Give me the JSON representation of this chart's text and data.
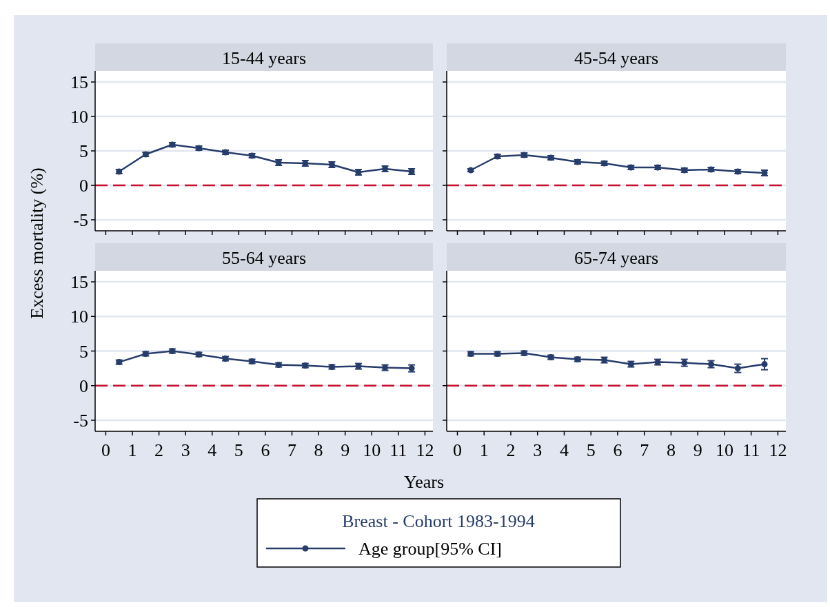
{
  "chart_data": [
    {
      "type": "line",
      "title": "15-44 years",
      "ylabel": "Excess mortality (%)",
      "legend_title": "Breast - Cohort 1983-1994",
      "legend": "bottom",
      "marker": "circle",
      "grid": "y",
      "tick_labels": "y",
      "xlim": [
        -0.4,
        12.3
      ],
      "ylim": [
        -6.6,
        16.6
      ],
      "xticks": [
        0,
        1,
        2,
        3,
        4,
        5,
        6,
        7,
        8,
        9,
        10,
        11,
        12
      ],
      "yticks": [
        -5,
        0,
        5,
        10,
        15
      ],
      "x": [
        0.5,
        1.5,
        2.5,
        3.5,
        4.5,
        5.5,
        6.5,
        7.5,
        8.5,
        9.5,
        10.5,
        11.5
      ],
      "ref_lines": [
        {
          "axis": "y",
          "value": 0,
          "color": "#c8102e",
          "line_style": "dashed"
        }
      ],
      "series": [
        {
          "name": "Age group[95% CI]",
          "color": "#263d6b",
          "values": [
            2.0,
            4.5,
            5.9,
            5.4,
            4.8,
            4.3,
            3.3,
            3.2,
            3.0,
            1.9,
            2.4,
            2.0
          ],
          "errors": [
            0.3,
            0.3,
            0.3,
            0.3,
            0.3,
            0.3,
            0.4,
            0.4,
            0.4,
            0.4,
            0.4,
            0.4
          ]
        }
      ]
    },
    {
      "type": "line",
      "title": "45-54 years",
      "marker": "circle",
      "grid": "y",
      "tick_labels": false,
      "xlim": [
        -0.4,
        12.3
      ],
      "ylim": [
        -6.6,
        16.6
      ],
      "xticks": [
        0,
        1,
        2,
        3,
        4,
        5,
        6,
        7,
        8,
        9,
        10,
        11,
        12
      ],
      "yticks": [
        -5,
        0,
        5,
        10,
        15
      ],
      "x": [
        0.5,
        1.5,
        2.5,
        3.5,
        4.5,
        5.5,
        6.5,
        7.5,
        8.5,
        9.5,
        10.5,
        11.5
      ],
      "ref_lines": [
        {
          "axis": "y",
          "value": 0,
          "color": "#c8102e",
          "line_style": "dashed"
        }
      ],
      "series": [
        {
          "color": "#263d6b",
          "values": [
            2.2,
            4.2,
            4.4,
            4.0,
            3.4,
            3.2,
            2.6,
            2.6,
            2.2,
            2.3,
            2.0,
            1.8
          ],
          "errors": [
            0.2,
            0.3,
            0.3,
            0.3,
            0.3,
            0.3,
            0.3,
            0.3,
            0.3,
            0.3,
            0.3,
            0.4
          ]
        }
      ]
    },
    {
      "type": "line",
      "title": "55-64 years",
      "xlabel": "Years",
      "marker": "circle",
      "grid": "y",
      "xlim": [
        -0.4,
        12.3
      ],
      "ylim": [
        -6.6,
        16.6
      ],
      "xticks": [
        0,
        1,
        2,
        3,
        4,
        5,
        6,
        7,
        8,
        9,
        10,
        11,
        12
      ],
      "yticks": [
        -5,
        0,
        5,
        10,
        15
      ],
      "x": [
        0.5,
        1.5,
        2.5,
        3.5,
        4.5,
        5.5,
        6.5,
        7.5,
        8.5,
        9.5,
        10.5,
        11.5
      ],
      "ref_lines": [
        {
          "axis": "y",
          "value": 0,
          "color": "#c8102e",
          "line_style": "dashed"
        }
      ],
      "series": [
        {
          "color": "#263d6b",
          "values": [
            3.4,
            4.6,
            5.0,
            4.5,
            3.9,
            3.5,
            3.0,
            2.9,
            2.7,
            2.8,
            2.6,
            2.5
          ],
          "errors": [
            0.3,
            0.3,
            0.3,
            0.3,
            0.3,
            0.3,
            0.3,
            0.3,
            0.3,
            0.4,
            0.4,
            0.5
          ]
        }
      ]
    },
    {
      "type": "line",
      "title": "65-74 years",
      "marker": "circle",
      "grid": "y",
      "tick_labels": "x",
      "xlim": [
        -0.4,
        12.3
      ],
      "ylim": [
        -6.6,
        16.6
      ],
      "xticks": [
        0,
        1,
        2,
        3,
        4,
        5,
        6,
        7,
        8,
        9,
        10,
        11,
        12
      ],
      "yticks": [
        -5,
        0,
        5,
        10,
        15
      ],
      "x": [
        0.5,
        1.5,
        2.5,
        3.5,
        4.5,
        5.5,
        6.5,
        7.5,
        8.5,
        9.5,
        10.5,
        11.5
      ],
      "ref_lines": [
        {
          "axis": "y",
          "value": 0,
          "color": "#c8102e",
          "line_style": "dashed"
        }
      ],
      "series": [
        {
          "color": "#263d6b",
          "values": [
            4.6,
            4.6,
            4.7,
            4.1,
            3.8,
            3.7,
            3.1,
            3.4,
            3.3,
            3.1,
            2.5,
            3.1
          ],
          "errors": [
            0.3,
            0.3,
            0.3,
            0.3,
            0.3,
            0.4,
            0.4,
            0.4,
            0.5,
            0.5,
            0.6,
            0.8
          ]
        }
      ]
    }
  ]
}
